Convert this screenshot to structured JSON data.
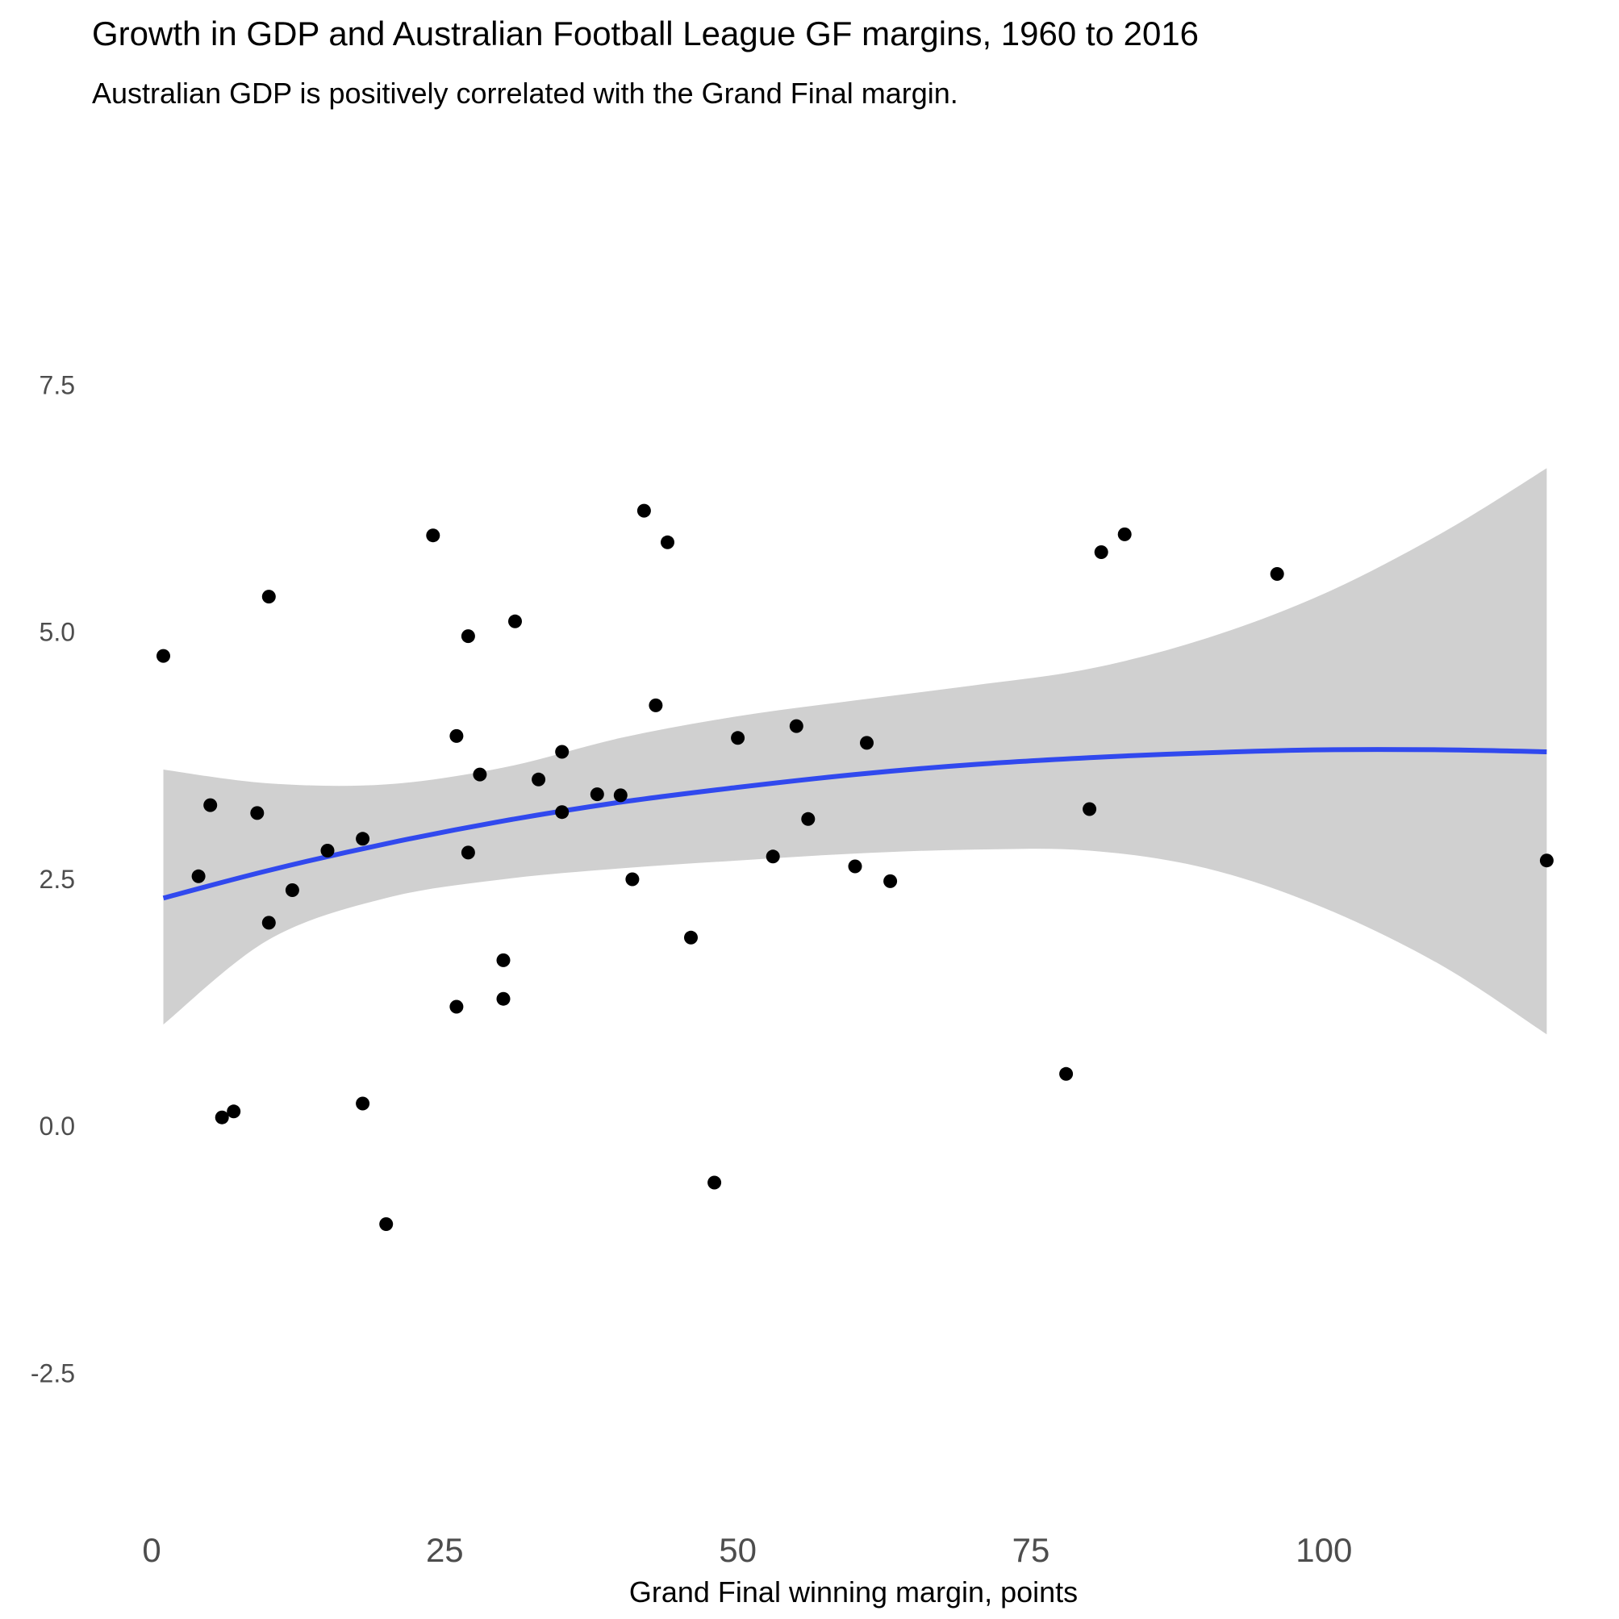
{
  "chart_data": {
    "type": "scatter",
    "title": "Growth in GDP and Australian Football League GF margins, 1960 to 2016",
    "subtitle": "Australian GDP is positively correlated with the Grand Final margin.",
    "xlabel": "Grand Final winning margin, points",
    "ylabel": "",
    "xlim": [
      -2,
      122
    ],
    "ylim": [
      -4,
      9
    ],
    "x_ticks": [
      0,
      25,
      50,
      75,
      100
    ],
    "x_tick_labels": [
      "0",
      "25",
      "50",
      "75",
      "100"
    ],
    "y_ticks": [
      -2.5,
      0,
      2.5,
      5,
      7.5
    ],
    "y_tick_labels": [
      "-2.5",
      "0.0",
      "2.5",
      "5.0",
      "7.5"
    ],
    "grid": false,
    "legend": "none",
    "point_color": "#000000",
    "points": [
      {
        "x": 1,
        "y": 4.75
      },
      {
        "x": 4,
        "y": 2.52
      },
      {
        "x": 5,
        "y": 3.24
      },
      {
        "x": 6,
        "y": 0.08
      },
      {
        "x": 7,
        "y": 0.14
      },
      {
        "x": 9,
        "y": 3.16
      },
      {
        "x": 10,
        "y": 5.35
      },
      {
        "x": 10,
        "y": 2.05
      },
      {
        "x": 12,
        "y": 2.38
      },
      {
        "x": 15,
        "y": 2.78
      },
      {
        "x": 18,
        "y": 2.9
      },
      {
        "x": 18,
        "y": 0.22
      },
      {
        "x": 20,
        "y": -1.0
      },
      {
        "x": 24,
        "y": 5.97
      },
      {
        "x": 26,
        "y": 3.94
      },
      {
        "x": 26,
        "y": 1.2
      },
      {
        "x": 27,
        "y": 4.95
      },
      {
        "x": 27,
        "y": 2.76
      },
      {
        "x": 28,
        "y": 3.55
      },
      {
        "x": 30,
        "y": 1.67
      },
      {
        "x": 30,
        "y": 1.28
      },
      {
        "x": 31,
        "y": 5.1
      },
      {
        "x": 33,
        "y": 3.5
      },
      {
        "x": 35,
        "y": 3.78
      },
      {
        "x": 35,
        "y": 3.17
      },
      {
        "x": 38,
        "y": 3.35
      },
      {
        "x": 40,
        "y": 3.34
      },
      {
        "x": 41,
        "y": 2.49
      },
      {
        "x": 42,
        "y": 6.22
      },
      {
        "x": 43,
        "y": 4.25
      },
      {
        "x": 44,
        "y": 5.9
      },
      {
        "x": 46,
        "y": 1.9
      },
      {
        "x": 48,
        "y": -0.58
      },
      {
        "x": 50,
        "y": 3.92
      },
      {
        "x": 53,
        "y": 2.72
      },
      {
        "x": 55,
        "y": 4.04
      },
      {
        "x": 56,
        "y": 3.1
      },
      {
        "x": 60,
        "y": 2.62
      },
      {
        "x": 61,
        "y": 3.87
      },
      {
        "x": 63,
        "y": 2.47
      },
      {
        "x": 78,
        "y": 0.52
      },
      {
        "x": 80,
        "y": 3.2
      },
      {
        "x": 81,
        "y": 5.8
      },
      {
        "x": 83,
        "y": 5.98
      },
      {
        "x": 96,
        "y": 5.58
      },
      {
        "x": 119,
        "y": 2.68
      }
    ],
    "smooth": {
      "color": "#3149ee",
      "band_color": "#d0d0d0",
      "x": [
        1,
        10,
        20,
        30,
        40,
        50,
        60,
        70,
        80,
        90,
        100,
        110,
        119
      ],
      "y": [
        2.3,
        2.58,
        2.85,
        3.08,
        3.27,
        3.42,
        3.55,
        3.65,
        3.72,
        3.77,
        3.8,
        3.8,
        3.78
      ],
      "lower": [
        1.02,
        1.88,
        2.3,
        2.49,
        2.6,
        2.68,
        2.75,
        2.79,
        2.78,
        2.6,
        2.2,
        1.62,
        0.92
      ],
      "upper": [
        3.6,
        3.46,
        3.45,
        3.62,
        3.92,
        4.14,
        4.3,
        4.45,
        4.62,
        4.93,
        5.38,
        5.99,
        6.65
      ]
    }
  }
}
